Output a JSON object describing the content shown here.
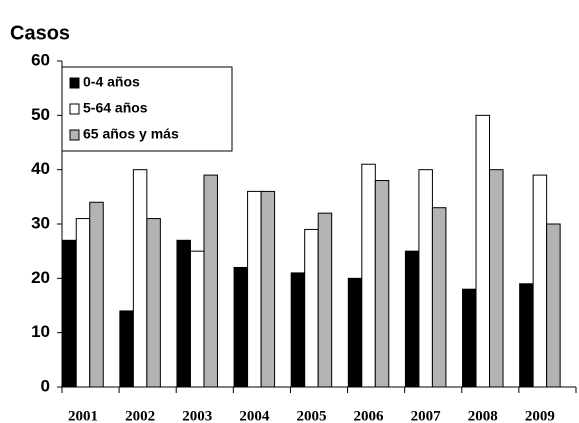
{
  "chart_data": {
    "type": "bar",
    "title": "Casos",
    "categories": [
      "2001",
      "2002",
      "2003",
      "2004",
      "2005",
      "2006",
      "2007",
      "2008",
      "2009"
    ],
    "series": [
      {
        "name": "0-4 años",
        "color": "#000000",
        "values": [
          27,
          14,
          27,
          22,
          21,
          20,
          25,
          18,
          19
        ]
      },
      {
        "name": "5-64 años",
        "color": "#ffffff",
        "values": [
          31,
          40,
          25,
          36,
          29,
          41,
          40,
          50,
          39
        ]
      },
      {
        "name": "65 años y más",
        "color": "#b3b3b3",
        "values": [
          34,
          31,
          39,
          36,
          32,
          38,
          33,
          40,
          30
        ]
      }
    ],
    "ylim": [
      0,
      60
    ],
    "yticks": [
      0,
      10,
      20,
      30,
      40,
      50,
      60
    ],
    "grid": false,
    "legend": "top-left"
  }
}
